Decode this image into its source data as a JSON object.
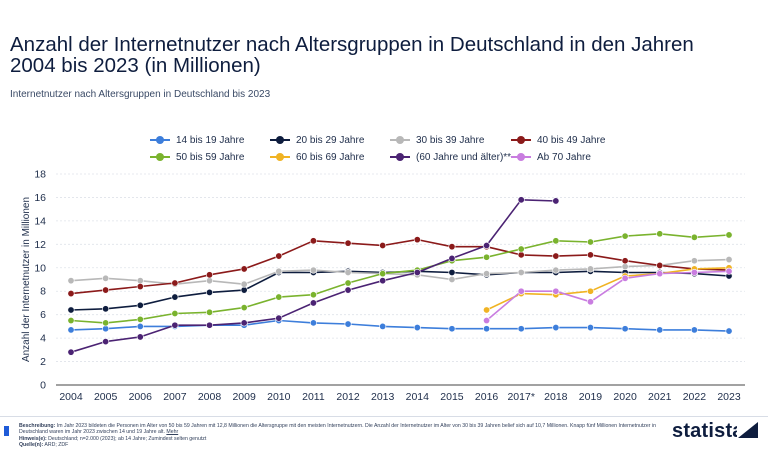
{
  "title": "Anzahl der Internetnutzer nach Altersgruppen in Deutschland in den Jahren 2004 bis 2023 (in Millionen)",
  "subtitle": "Internetnutzer nach Altersgruppen in Deutschland bis 2023",
  "footer": {
    "beschreibung_label": "Beschreibung:",
    "beschreibung_text": "Im Jahr 2023 bildeten die Personen im Alter von 50 bis 59 Jahren mit 12,8 Millionen die Altersgruppe mit den meisten Internetnutzern. Die Anzahl der Internetnutzer im Alter von 30 bis 39 Jahren belief sich auf 10,7 Millionen. Knapp fünf Millionen Internetnutzer in Deutschland waren im Jahr 2023 zwischen 14 und 19 Jahre alt.",
    "mehr_link": "Mehr",
    "hinweise_label": "Hinweis(e):",
    "hinweise_text": "Deutschland; n=2.000 (2023); ab 14 Jahre; Zumindest selten genutzt",
    "quellen_label": "Quelle(n):",
    "quellen_text": "ARD; ZDF",
    "brand": "statista"
  },
  "chart_data": {
    "type": "line",
    "ylabel": "Anzahl der Internetnutzer in Millionen",
    "xlabel": "",
    "ylim": [
      0,
      18
    ],
    "yticks": [
      "0",
      "2",
      "4",
      "6",
      "8",
      "10",
      "12",
      "14",
      "16",
      "18"
    ],
    "grid": true,
    "legend_position": "top",
    "categories": [
      "2004",
      "2005",
      "2006",
      "2007",
      "2008",
      "2009",
      "2010",
      "2011",
      "2012",
      "2013",
      "2014",
      "2015",
      "2016",
      "2017*",
      "2018",
      "2019",
      "2020",
      "2021",
      "2022",
      "2023"
    ],
    "series": [
      {
        "name": "14 bis 19 Jahre",
        "color": "#3d7edb",
        "values": [
          4.7,
          4.8,
          5.0,
          5.0,
          5.1,
          5.1,
          5.5,
          5.3,
          5.2,
          5.0,
          4.9,
          4.8,
          4.8,
          4.8,
          4.9,
          4.9,
          4.8,
          4.7,
          4.7,
          4.6
        ]
      },
      {
        "name": "20 bis 29 Jahre",
        "color": "#0e1d3e",
        "values": [
          6.4,
          6.5,
          6.8,
          7.5,
          7.9,
          8.1,
          9.6,
          9.6,
          9.7,
          9.6,
          9.7,
          9.6,
          9.4,
          9.6,
          9.6,
          9.7,
          9.6,
          9.6,
          9.5,
          9.3
        ]
      },
      {
        "name": "30 bis 39 Jahre",
        "color": "#b8b8b8",
        "values": [
          8.9,
          9.1,
          8.9,
          8.6,
          8.9,
          8.6,
          9.7,
          9.8,
          9.6,
          9.5,
          9.4,
          9.0,
          9.5,
          9.6,
          9.8,
          9.9,
          10.1,
          10.2,
          10.6,
          10.7
        ]
      },
      {
        "name": "40 bis 49 Jahre",
        "color": "#8b1a1a",
        "values": [
          7.8,
          8.1,
          8.4,
          8.7,
          9.4,
          9.9,
          11.0,
          12.3,
          12.1,
          11.9,
          12.4,
          11.8,
          11.8,
          11.1,
          11.0,
          11.1,
          10.6,
          10.2,
          9.9,
          9.8
        ]
      },
      {
        "name": "50 bis 59 Jahre",
        "color": "#7ab32e",
        "values": [
          5.5,
          5.3,
          5.6,
          6.1,
          6.2,
          6.6,
          7.5,
          7.7,
          8.7,
          9.5,
          9.8,
          10.6,
          10.9,
          11.6,
          12.3,
          12.2,
          12.7,
          12.9,
          12.6,
          12.8
        ]
      },
      {
        "name": "60 bis 69 Jahre",
        "color": "#f0b323",
        "values": [
          null,
          null,
          null,
          null,
          null,
          null,
          null,
          null,
          null,
          null,
          null,
          null,
          6.4,
          7.8,
          7.7,
          8.0,
          9.3,
          9.5,
          9.9,
          10.0
        ]
      },
      {
        "name": "(60 Jahre und älter)**",
        "color": "#4b2373",
        "values": [
          2.8,
          3.7,
          4.1,
          5.1,
          5.1,
          5.3,
          5.7,
          7.0,
          8.1,
          8.9,
          9.6,
          10.8,
          11.9,
          15.8,
          15.7,
          null,
          null,
          null,
          null,
          null
        ]
      },
      {
        "name": "Ab 70 Jahre",
        "color": "#c97de0",
        "values": [
          null,
          null,
          null,
          null,
          null,
          null,
          null,
          null,
          null,
          null,
          null,
          null,
          5.5,
          8.0,
          8.0,
          7.1,
          9.1,
          9.5,
          9.6,
          9.7
        ]
      }
    ]
  }
}
